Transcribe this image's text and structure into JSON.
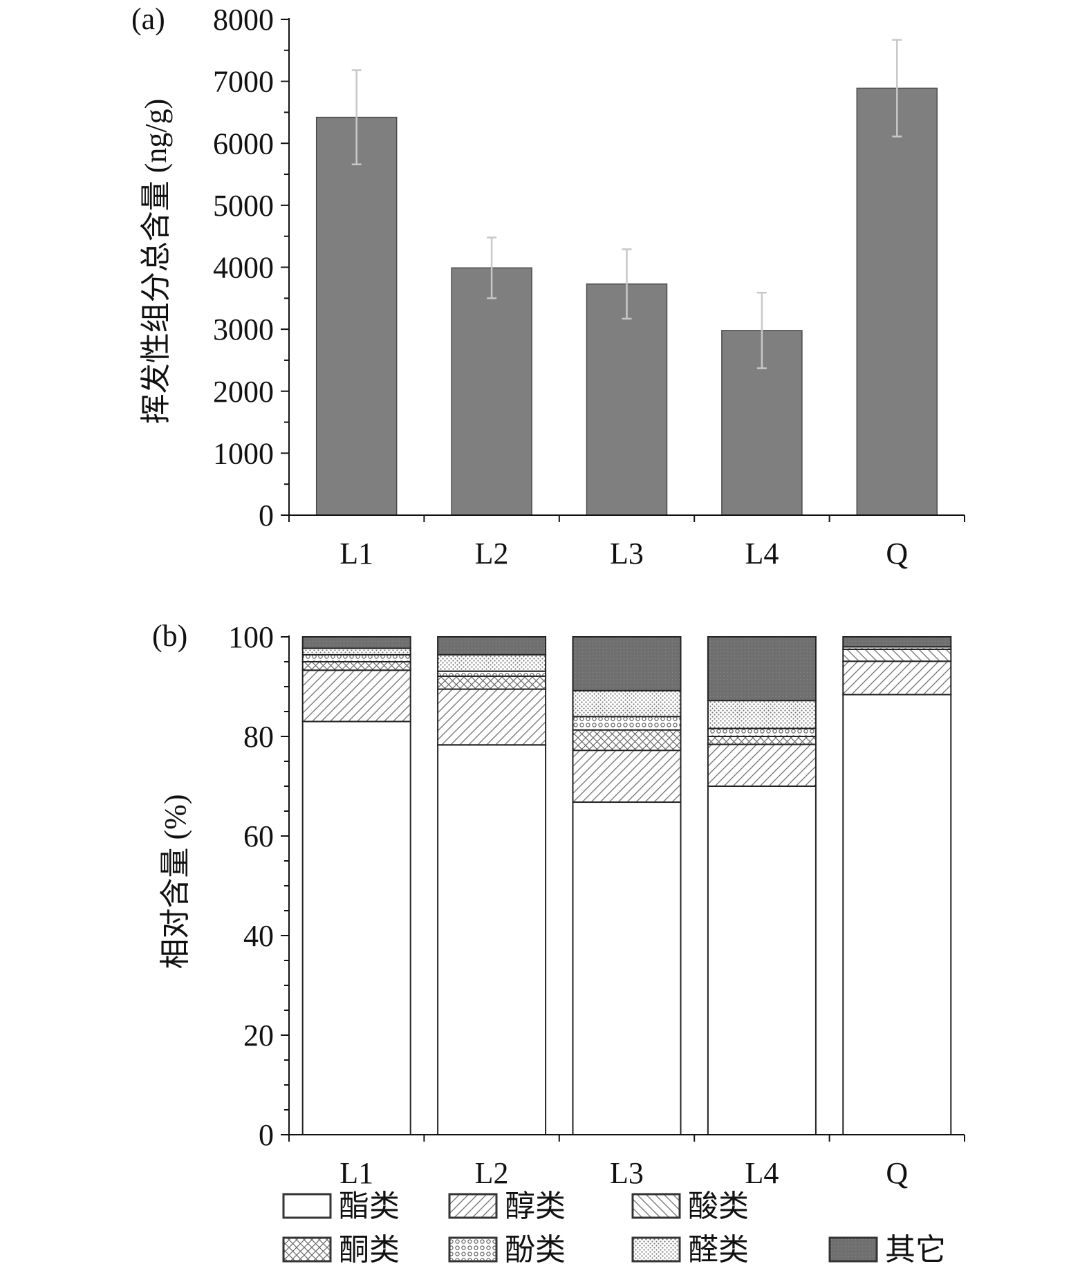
{
  "chart_data": [
    {
      "type": "bar",
      "panel_label": "(a)",
      "categories": [
        "L1",
        "L2",
        "L3",
        "L4",
        "Q"
      ],
      "values": [
        6420,
        3990,
        3730,
        2980,
        6890
      ],
      "errors": [
        760,
        490,
        560,
        610,
        780
      ],
      "ylabel": "挥发性组分总含量 (ng/g)",
      "xlabel": "",
      "ylim": [
        0,
        8000
      ],
      "yticks": [
        "0",
        "1000",
        "2000",
        "3000",
        "4000",
        "5000",
        "6000",
        "7000",
        "8000"
      ],
      "bar_color": "#7f7f7f",
      "error_bar_color": "#c8c8c8",
      "grid": false
    },
    {
      "type": "bar",
      "stacked": true,
      "panel_label": "(b)",
      "categories": [
        "L1",
        "L2",
        "L3",
        "L4",
        "Q"
      ],
      "ylabel": "相对含量 (%)",
      "xlabel": "",
      "ylim": [
        0,
        100
      ],
      "yticks": [
        "0",
        "20",
        "40",
        "60",
        "80",
        "100"
      ],
      "grid": false,
      "legend_position": "bottom",
      "series": [
        {
          "name": "酯类",
          "pattern": "blank",
          "values": [
            83.0,
            78.3,
            66.8,
            70.0,
            88.4
          ]
        },
        {
          "name": "醇类",
          "pattern": "diag-right",
          "values": [
            10.3,
            11.2,
            10.4,
            8.4,
            6.7
          ]
        },
        {
          "name": "酸类",
          "pattern": "diag-left",
          "values": [
            0.0,
            0.0,
            0.0,
            0.0,
            2.4
          ]
        },
        {
          "name": "酮类",
          "pattern": "crosshatch",
          "values": [
            1.7,
            2.6,
            4.1,
            1.6,
            0.0
          ]
        },
        {
          "name": "酚类",
          "pattern": "circles",
          "values": [
            1.4,
            1.0,
            2.7,
            1.6,
            0.5
          ]
        },
        {
          "name": "醛类",
          "pattern": "fine-dots",
          "values": [
            1.3,
            3.3,
            5.2,
            5.6,
            0.0
          ]
        },
        {
          "name": "其它",
          "pattern": "dark-fill",
          "values": [
            2.3,
            3.6,
            10.8,
            12.8,
            2.0
          ]
        }
      ]
    }
  ]
}
